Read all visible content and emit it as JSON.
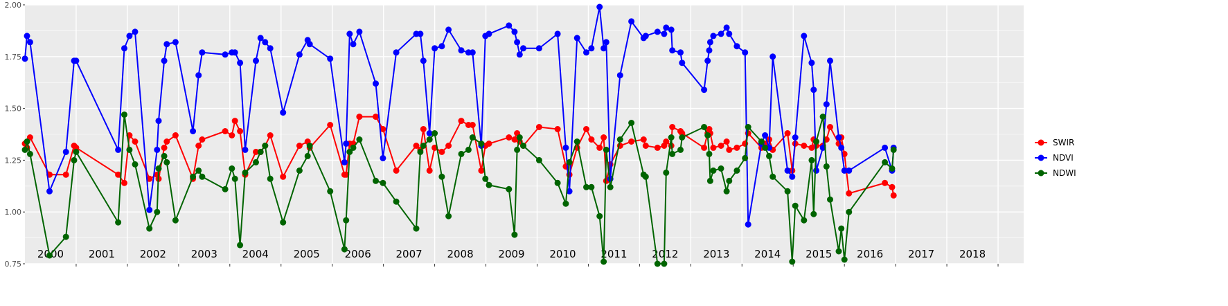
{
  "chart_data": {
    "type": "line",
    "title": "",
    "xlabel": "",
    "ylabel": "",
    "ylim": [
      0.75,
      2.0
    ],
    "y_ticks": [
      "0.75",
      "1.00",
      "1.25",
      "1.50",
      "1.75",
      "2.00"
    ],
    "xlim": [
      2000.0,
      2019.5
    ],
    "year_labels": [
      "2000",
      "2001",
      "2002",
      "2003",
      "2004",
      "2005",
      "2006",
      "2007",
      "2008",
      "2009",
      "2010",
      "2011",
      "2012",
      "2013",
      "2014",
      "2015",
      "2016",
      "2017",
      "2018"
    ],
    "grid": true,
    "legend_position": "right",
    "panel_background": "#ebebeb",
    "series": [
      {
        "name": "SWIR",
        "color": "#ff0000",
        "x": [
          2000.0,
          2000.04,
          2000.1,
          2000.48,
          2000.8,
          2000.96,
          2001.0,
          2001.82,
          2001.94,
          2002.04,
          2002.15,
          2002.43,
          2002.58,
          2002.61,
          2002.72,
          2002.77,
          2002.94,
          2003.28,
          2003.39,
          2003.46,
          2003.91,
          2004.04,
          2004.1,
          2004.2,
          2004.3,
          2004.51,
          2004.6,
          2004.69,
          2004.79,
          2005.04,
          2005.36,
          2005.52,
          2005.56,
          2005.96,
          2006.24,
          2006.27,
          2006.34,
          2006.41,
          2006.53,
          2006.85,
          2006.99,
          2007.25,
          2007.64,
          2007.72,
          2007.78,
          2007.9,
          2008.0,
          2008.14,
          2008.27,
          2008.52,
          2008.66,
          2008.74,
          2008.91,
          2008.99,
          2009.06,
          2009.45,
          2009.56,
          2009.61,
          2009.66,
          2009.73,
          2010.04,
          2010.4,
          2010.56,
          2010.63,
          2010.78,
          2010.96,
          2011.06,
          2011.22,
          2011.3,
          2011.35,
          2011.43,
          2011.62,
          2011.84,
          2012.08,
          2012.12,
          2012.35,
          2012.48,
          2012.52,
          2012.62,
          2012.64,
          2012.8,
          2012.83,
          2013.26,
          2013.33,
          2013.36,
          2013.38,
          2013.44,
          2013.59,
          2013.7,
          2013.75,
          2013.9,
          2014.06,
          2014.12,
          2014.38,
          2014.45,
          2014.53,
          2014.6,
          2014.89,
          2014.98,
          2015.04,
          2015.21,
          2015.36,
          2015.4,
          2015.45,
          2015.58,
          2015.65,
          2015.72,
          2015.89,
          2015.94,
          2016.0,
          2016.09,
          2016.79,
          2016.93,
          2016.96
        ],
        "values": [
          1.33,
          1.31,
          1.36,
          1.18,
          1.18,
          1.32,
          1.31,
          1.18,
          1.14,
          1.37,
          1.34,
          1.16,
          1.18,
          1.16,
          1.31,
          1.34,
          1.37,
          1.16,
          1.32,
          1.35,
          1.39,
          1.37,
          1.44,
          1.39,
          1.18,
          1.29,
          1.29,
          1.32,
          1.37,
          1.17,
          1.32,
          1.34,
          1.31,
          1.42,
          1.18,
          1.18,
          1.33,
          1.33,
          1.46,
          1.46,
          1.4,
          1.2,
          1.32,
          1.3,
          1.4,
          1.2,
          1.31,
          1.29,
          1.32,
          1.44,
          1.42,
          1.42,
          1.2,
          1.32,
          1.33,
          1.36,
          1.35,
          1.38,
          1.34,
          1.32,
          1.41,
          1.4,
          1.22,
          1.18,
          1.31,
          1.4,
          1.35,
          1.31,
          1.36,
          1.15,
          1.23,
          1.32,
          1.34,
          1.35,
          1.32,
          1.31,
          1.32,
          1.34,
          1.32,
          1.41,
          1.39,
          1.38,
          1.31,
          1.38,
          1.4,
          1.38,
          1.31,
          1.32,
          1.34,
          1.3,
          1.31,
          1.33,
          1.38,
          1.31,
          1.33,
          1.35,
          1.3,
          1.38,
          1.2,
          1.33,
          1.32,
          1.31,
          1.35,
          1.32,
          1.32,
          1.35,
          1.41,
          1.33,
          1.36,
          1.28,
          1.09,
          1.14,
          1.12,
          1.08
        ]
      },
      {
        "name": "NDVI",
        "color": "#0000ff",
        "x": [
          2000.0,
          2000.04,
          2000.1,
          2000.48,
          2000.8,
          2000.96,
          2001.0,
          2001.82,
          2001.94,
          2002.04,
          2002.15,
          2002.43,
          2002.58,
          2002.61,
          2002.72,
          2002.77,
          2002.94,
          2003.28,
          2003.39,
          2003.46,
          2003.91,
          2004.04,
          2004.1,
          2004.2,
          2004.3,
          2004.51,
          2004.6,
          2004.69,
          2004.79,
          2005.04,
          2005.36,
          2005.52,
          2005.56,
          2005.96,
          2006.24,
          2006.27,
          2006.34,
          2006.41,
          2006.53,
          2006.85,
          2006.99,
          2007.25,
          2007.64,
          2007.72,
          2007.78,
          2007.9,
          2008.0,
          2008.14,
          2008.27,
          2008.52,
          2008.66,
          2008.74,
          2008.91,
          2008.99,
          2009.06,
          2009.45,
          2009.56,
          2009.61,
          2009.66,
          2009.73,
          2010.04,
          2010.4,
          2010.56,
          2010.63,
          2010.78,
          2010.96,
          2011.06,
          2011.22,
          2011.3,
          2011.35,
          2011.43,
          2011.62,
          2011.84,
          2012.08,
          2012.12,
          2012.35,
          2012.48,
          2012.52,
          2012.62,
          2012.64,
          2012.8,
          2012.83,
          2013.26,
          2013.33,
          2013.36,
          2013.38,
          2013.44,
          2013.59,
          2013.7,
          2013.75,
          2013.9,
          2014.06,
          2014.12,
          2014.38,
          2014.45,
          2014.53,
          2014.6,
          2014.89,
          2014.98,
          2015.04,
          2015.21,
          2015.36,
          2015.4,
          2015.45,
          2015.58,
          2015.65,
          2015.72,
          2015.89,
          2015.94,
          2016.0,
          2016.09,
          2016.79,
          2016.93,
          2016.96
        ],
        "values": [
          1.74,
          1.85,
          1.82,
          1.1,
          1.29,
          1.73,
          1.73,
          1.3,
          1.79,
          1.85,
          1.87,
          1.01,
          1.3,
          1.44,
          1.73,
          1.81,
          1.82,
          1.39,
          1.66,
          1.77,
          1.76,
          1.77,
          1.77,
          1.72,
          1.3,
          1.73,
          1.84,
          1.82,
          1.79,
          1.48,
          1.76,
          1.83,
          1.81,
          1.74,
          1.24,
          1.33,
          1.86,
          1.81,
          1.87,
          1.62,
          1.26,
          1.77,
          1.86,
          1.86,
          1.73,
          1.38,
          1.79,
          1.8,
          1.88,
          1.78,
          1.77,
          1.77,
          1.32,
          1.85,
          1.86,
          1.9,
          1.87,
          1.82,
          1.76,
          1.79,
          1.79,
          1.86,
          1.31,
          1.1,
          1.84,
          1.77,
          1.79,
          1.99,
          1.79,
          1.82,
          1.16,
          1.66,
          1.92,
          1.84,
          1.85,
          1.87,
          1.86,
          1.89,
          1.88,
          1.78,
          1.77,
          1.72,
          1.59,
          1.73,
          1.78,
          1.82,
          1.85,
          1.86,
          1.89,
          1.86,
          1.8,
          1.77,
          0.94,
          1.33,
          1.37,
          1.31,
          1.75,
          1.2,
          1.17,
          1.36,
          1.85,
          1.72,
          1.59,
          1.2,
          1.31,
          1.52,
          1.73,
          1.36,
          1.31,
          1.2,
          1.2,
          1.31,
          1.2,
          1.31
        ]
      },
      {
        "name": "NDWI",
        "color": "#006400",
        "x": [
          2000.0,
          2000.04,
          2000.1,
          2000.48,
          2000.8,
          2000.96,
          2001.0,
          2001.82,
          2001.94,
          2002.04,
          2002.15,
          2002.43,
          2002.58,
          2002.61,
          2002.72,
          2002.77,
          2002.94,
          2003.28,
          2003.39,
          2003.46,
          2003.91,
          2004.04,
          2004.1,
          2004.2,
          2004.3,
          2004.51,
          2004.6,
          2004.69,
          2004.79,
          2005.04,
          2005.36,
          2005.52,
          2005.56,
          2005.96,
          2006.24,
          2006.27,
          2006.34,
          2006.41,
          2006.53,
          2006.85,
          2006.99,
          2007.25,
          2007.64,
          2007.72,
          2007.78,
          2007.9,
          2008.0,
          2008.14,
          2008.27,
          2008.52,
          2008.66,
          2008.74,
          2008.91,
          2008.99,
          2009.06,
          2009.45,
          2009.56,
          2009.61,
          2009.66,
          2009.73,
          2010.04,
          2010.4,
          2010.56,
          2010.63,
          2010.78,
          2010.96,
          2011.06,
          2011.22,
          2011.3,
          2011.35,
          2011.43,
          2011.62,
          2011.84,
          2012.08,
          2012.12,
          2012.35,
          2012.48,
          2012.52,
          2012.62,
          2012.64,
          2012.8,
          2012.83,
          2013.26,
          2013.33,
          2013.36,
          2013.38,
          2013.44,
          2013.59,
          2013.7,
          2013.75,
          2013.9,
          2014.06,
          2014.12,
          2014.38,
          2014.45,
          2014.53,
          2014.6,
          2014.89,
          2014.98,
          2015.04,
          2015.21,
          2015.36,
          2015.4,
          2015.45,
          2015.58,
          2015.65,
          2015.72,
          2015.89,
          2015.94,
          2016.0,
          2016.09,
          2016.79,
          2016.93,
          2016.96
        ],
        "values": [
          1.3,
          1.34,
          1.28,
          0.79,
          0.88,
          1.25,
          1.29,
          0.95,
          1.47,
          1.3,
          1.23,
          0.92,
          1.0,
          1.21,
          1.27,
          1.24,
          0.96,
          1.17,
          1.2,
          1.17,
          1.11,
          1.21,
          1.16,
          0.84,
          1.19,
          1.24,
          1.29,
          1.32,
          1.16,
          0.95,
          1.2,
          1.27,
          1.32,
          1.1,
          0.82,
          0.96,
          1.29,
          1.31,
          1.35,
          1.15,
          1.14,
          1.05,
          0.92,
          1.29,
          1.32,
          1.35,
          1.38,
          1.17,
          0.98,
          1.28,
          1.3,
          1.36,
          1.33,
          1.16,
          1.13,
          1.11,
          0.89,
          1.3,
          1.36,
          1.32,
          1.25,
          1.14,
          1.04,
          1.24,
          1.34,
          1.12,
          1.12,
          0.98,
          0.76,
          1.3,
          1.12,
          1.35,
          1.43,
          1.18,
          1.17,
          0.75,
          0.75,
          1.19,
          1.36,
          1.28,
          1.3,
          1.36,
          1.41,
          1.37,
          1.28,
          1.15,
          1.2,
          1.21,
          1.1,
          1.15,
          1.2,
          1.26,
          1.41,
          1.34,
          1.31,
          1.27,
          1.17,
          1.1,
          0.76,
          1.03,
          0.96,
          1.25,
          0.99,
          1.34,
          1.46,
          1.22,
          1.06,
          0.81,
          0.92,
          0.77,
          1.0,
          1.24,
          1.21,
          1.3
        ]
      }
    ]
  }
}
